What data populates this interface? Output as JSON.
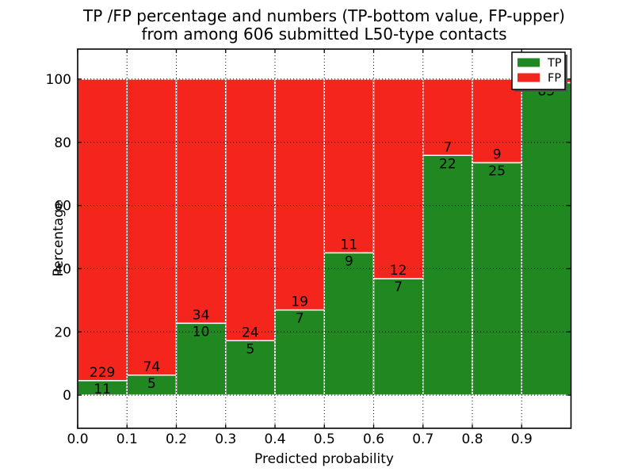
{
  "figure": {
    "title_line1": "TP /FP percentage and numbers (TP-bottom value, FP-upper)",
    "title_line2": "from among 606 submitted L50-type contacts"
  },
  "chart_data": {
    "type": "bar",
    "variant": "stacked-percentage-histogram",
    "title": "TP /FP percentage and numbers (TP-bottom value, FP-upper)\nfrom among 606 submitted L50-type contacts",
    "xlabel": "Predicted probability",
    "ylabel": "Percentage",
    "total_submitted_contacts": 606,
    "grid": true,
    "xlim": [
      0.0,
      1.0
    ],
    "ylim": [
      -10.5,
      109.5
    ],
    "x_tick_labels": [
      "0.0",
      "0.1",
      "0.2",
      "0.3",
      "0.4",
      "0.5",
      "0.6",
      "0.7",
      "0.8",
      "0.9"
    ],
    "y_ticks": [
      "0",
      "20",
      "40",
      "60",
      "80",
      "100"
    ],
    "y_tick_values": [
      0,
      20,
      40,
      60,
      80,
      100
    ],
    "bin_width": 0.1,
    "legend": {
      "position": "upper right",
      "entries": [
        {
          "label": "TP",
          "color": "#218721"
        },
        {
          "label": "FP",
          "color": "#f3251d"
        }
      ]
    },
    "series": [
      {
        "name": "TP",
        "counts": [
          11,
          5,
          10,
          5,
          7,
          9,
          7,
          22,
          25,
          85
        ]
      },
      {
        "name": "FP",
        "counts": [
          229,
          74,
          34,
          24,
          19,
          11,
          12,
          7,
          9,
          1
        ]
      }
    ],
    "bins": [
      {
        "range": "0.0-0.1",
        "tp": 11,
        "fp": 229,
        "tp_pct": 4.58,
        "tp_label": "11",
        "fp_label": "229"
      },
      {
        "range": "0.1-0.2",
        "tp": 5,
        "fp": 74,
        "tp_pct": 6.33,
        "tp_label": "5",
        "fp_label": "74"
      },
      {
        "range": "0.2-0.3",
        "tp": 10,
        "fp": 34,
        "tp_pct": 22.73,
        "tp_label": "10",
        "fp_label": "34"
      },
      {
        "range": "0.3-0.4",
        "tp": 5,
        "fp": 24,
        "tp_pct": 17.24,
        "tp_label": "5",
        "fp_label": "24"
      },
      {
        "range": "0.4-0.5",
        "tp": 7,
        "fp": 19,
        "tp_pct": 26.92,
        "tp_label": "7",
        "fp_label": "19"
      },
      {
        "range": "0.5-0.6",
        "tp": 9,
        "fp": 11,
        "tp_pct": 45.0,
        "tp_label": "9",
        "fp_label": "11"
      },
      {
        "range": "0.6-0.7",
        "tp": 7,
        "fp": 12,
        "tp_pct": 36.84,
        "tp_label": "7",
        "fp_label": "12"
      },
      {
        "range": "0.7-0.8",
        "tp": 22,
        "fp": 7,
        "tp_pct": 75.86,
        "tp_label": "22",
        "fp_label": "7"
      },
      {
        "range": "0.8-0.9",
        "tp": 25,
        "fp": 9,
        "tp_pct": 73.53,
        "tp_label": "25",
        "fp_label": "9"
      },
      {
        "range": "0.9-1.0",
        "tp": 85,
        "fp": 1,
        "tp_pct": 98.84,
        "tp_label": "85",
        "fp_label": ""
      }
    ],
    "colors": {
      "tp": "#218721",
      "fp": "#f3251d",
      "bar_edge": "#ffffff",
      "grid": "#000000",
      "background": "#ffffff",
      "spine": "#000000"
    }
  }
}
